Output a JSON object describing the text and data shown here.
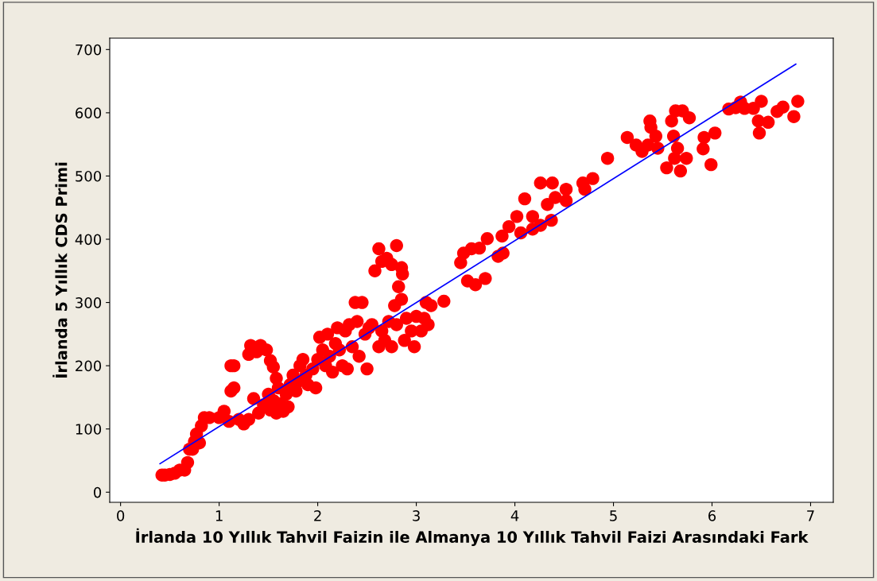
{
  "chart_data": {
    "type": "scatter",
    "xlabel": "İrlanda 10 Yıllık Tahvil Faizin ile Almanya 10 Yıllık Tahvil Faizi Arasındaki Fark",
    "ylabel": "İrlanda 5 Yıllık CDS Primi",
    "xlim": [
      -0.11,
      7.23
    ],
    "xticks": [
      0,
      1,
      2,
      3,
      4,
      5,
      6,
      7
    ],
    "ylim": [
      -16,
      718
    ],
    "yticks": [
      0,
      100,
      200,
      300,
      400,
      500,
      600,
      700
    ],
    "grid": false,
    "marker": "circle",
    "series": [
      {
        "color": "#ff0000",
        "x": [
          0.42,
          0.45,
          0.5,
          0.55,
          0.6,
          0.65,
          0.68,
          0.7,
          0.73,
          0.75,
          0.77,
          0.8,
          0.82,
          0.85,
          0.9,
          1.0,
          1.05,
          1.1,
          1.12,
          1.15,
          1.12,
          1.15,
          1.2,
          1.25,
          1.3,
          1.3,
          1.32,
          1.38,
          1.42,
          1.48,
          1.52,
          1.55,
          1.58,
          1.6,
          1.35,
          1.4,
          1.45,
          1.5,
          1.52,
          1.55,
          1.58,
          1.62,
          1.65,
          1.68,
          1.7,
          1.72,
          1.75,
          1.78,
          1.8,
          1.82,
          1.85,
          1.88,
          1.9,
          1.95,
          1.98,
          2.0,
          2.02,
          2.05,
          2.08,
          2.1,
          2.12,
          2.15,
          2.18,
          2.2,
          2.22,
          2.25,
          2.28,
          2.3,
          2.32,
          2.35,
          2.38,
          2.4,
          2.42,
          2.45,
          2.48,
          2.5,
          2.52,
          2.55,
          2.58,
          2.62,
          2.65,
          2.7,
          2.75,
          2.8,
          2.85,
          2.86,
          2.62,
          2.65,
          2.68,
          2.72,
          2.75,
          2.78,
          2.8,
          2.82,
          2.85,
          2.88,
          2.9,
          2.95,
          2.98,
          3.0,
          3.05,
          3.08,
          3.1,
          3.12,
          3.15,
          3.28,
          3.45,
          3.48,
          3.56,
          3.64,
          3.72,
          3.52,
          3.6,
          3.7,
          3.83,
          3.88,
          3.87,
          3.94,
          4.02,
          4.1,
          4.06,
          4.18,
          4.18,
          4.26,
          4.26,
          4.33,
          4.37,
          4.38,
          4.41,
          4.52,
          4.52,
          4.69,
          4.71,
          4.79,
          4.94,
          5.14,
          5.23,
          5.29,
          5.35,
          5.37,
          5.38,
          5.43,
          5.45,
          5.54,
          5.59,
          5.63,
          5.7,
          5.77,
          5.61,
          5.65,
          5.62,
          5.74,
          5.68,
          5.92,
          5.91,
          6.03,
          5.99,
          6.17,
          6.24,
          6.29,
          6.33,
          6.42,
          6.5,
          6.47,
          6.48,
          6.57,
          6.66,
          6.72,
          6.83,
          6.87
        ],
        "values": [
          27,
          27,
          28,
          30,
          35,
          35,
          47,
          68,
          68,
          80,
          92,
          78,
          105,
          118,
          118,
          118,
          128,
          112,
          160,
          165,
          200,
          200,
          115,
          108,
          115,
          218,
          232,
          222,
          232,
          225,
          208,
          198,
          180,
          165,
          148,
          125,
          138,
          155,
          130,
          145,
          125,
          140,
          128,
          155,
          135,
          170,
          185,
          160,
          175,
          200,
          210,
          185,
          170,
          195,
          165,
          210,
          245,
          225,
          200,
          250,
          215,
          190,
          235,
          260,
          225,
          200,
          255,
          195,
          265,
          230,
          300,
          270,
          215,
          300,
          250,
          195,
          260,
          265,
          350,
          385,
          365,
          370,
          360,
          390,
          355,
          345,
          230,
          255,
          240,
          270,
          230,
          295,
          265,
          325,
          305,
          240,
          275,
          255,
          230,
          278,
          255,
          275,
          300,
          265,
          295,
          302,
          363,
          378,
          385,
          386,
          401,
          334,
          328,
          338,
          373,
          378,
          405,
          420,
          436,
          464,
          410,
          416,
          436,
          422,
          489,
          455,
          430,
          489,
          466,
          479,
          461,
          489,
          479,
          496,
          528,
          561,
          549,
          539,
          549,
          587,
          577,
          563,
          544,
          513,
          587,
          603,
          603,
          592,
          563,
          544,
          528,
          528,
          508,
          561,
          543,
          568,
          518,
          606,
          608,
          617,
          607,
          607,
          618,
          587,
          568,
          585,
          602,
          609,
          594,
          618
        ]
      },
      {
        "type": "line",
        "color": "#0000ff",
        "marker": "none",
        "line_style": "solid",
        "x": [
          0.4,
          6.85
        ],
        "values": [
          45,
          677
        ]
      }
    ]
  }
}
